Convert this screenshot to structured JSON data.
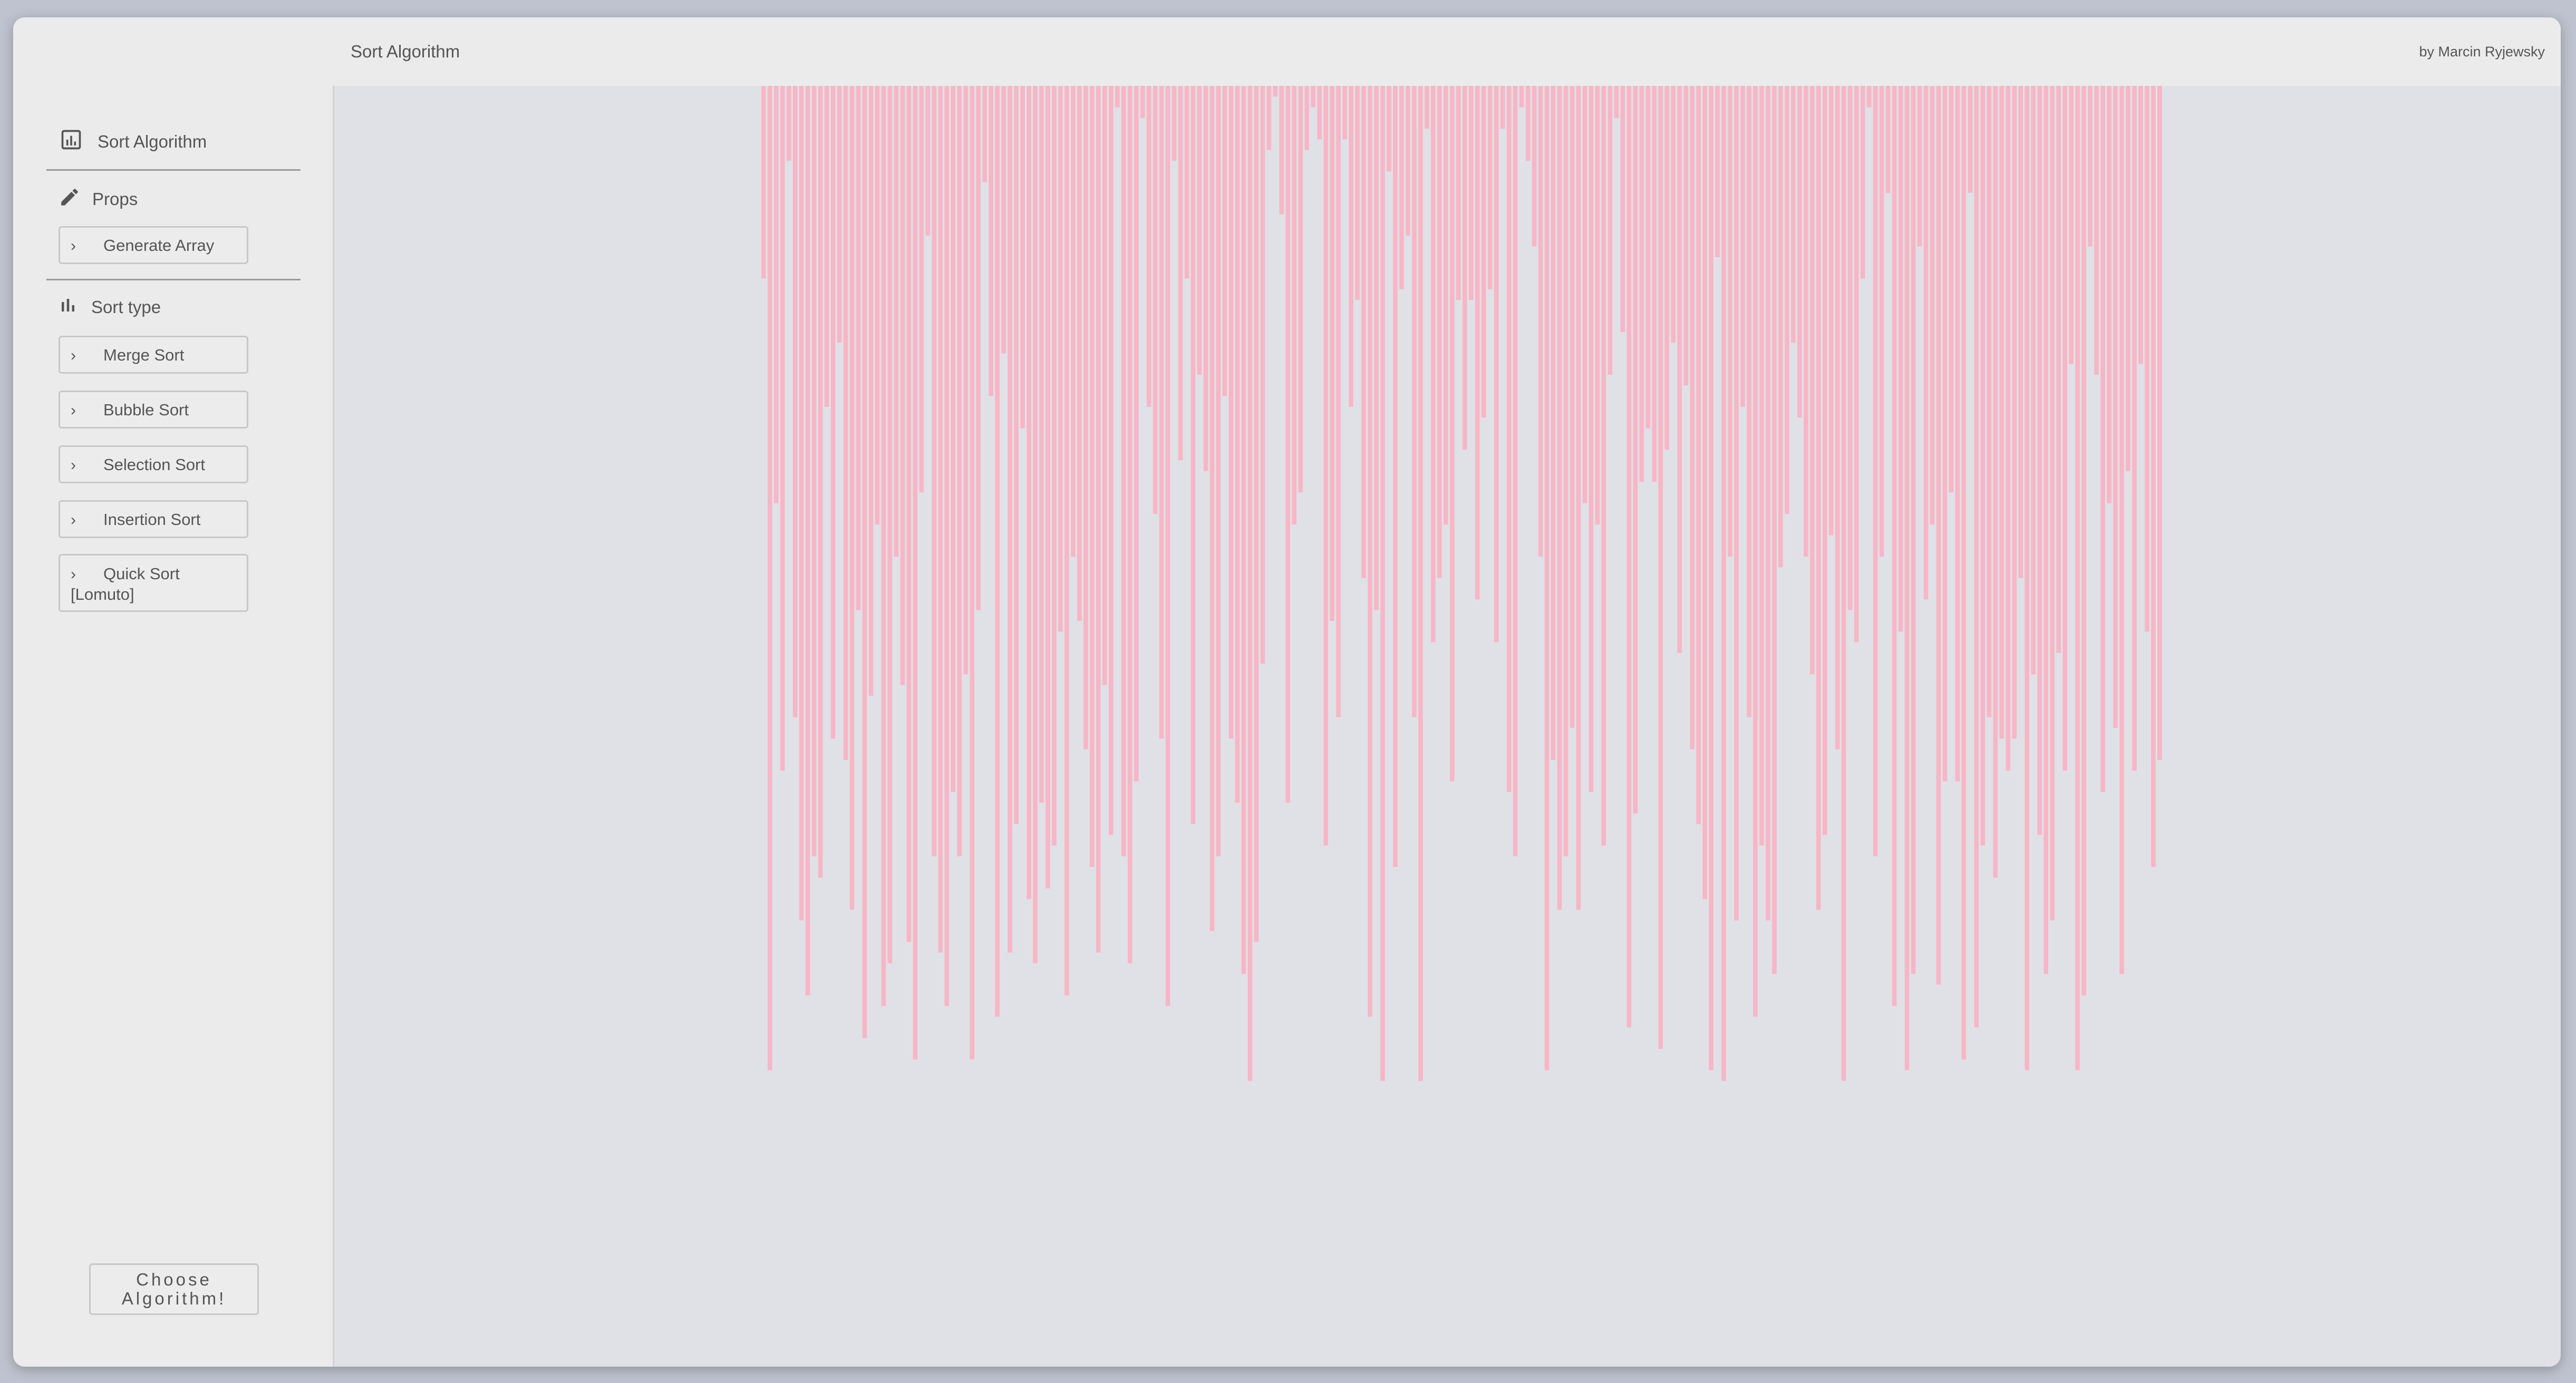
{
  "header": {
    "title": "Sort Algorithm",
    "author": "by Marcin Ryjewsky"
  },
  "sidebar": {
    "brand": {
      "label": "Sort Algorithm",
      "icon": "bar-chart-icon"
    },
    "props": {
      "label": "Props",
      "icon": "pencil-icon",
      "items": [
        {
          "label": "Generate Array"
        }
      ]
    },
    "sort_type": {
      "label": "Sort type",
      "icon": "bar-chart-icon",
      "items": [
        {
          "label": "Merge Sort"
        },
        {
          "label": "Bubble Sort"
        },
        {
          "label": "Selection Sort"
        },
        {
          "label": "Insertion Sort"
        },
        {
          "label": "Quick Sort [Lomuto]"
        }
      ]
    },
    "choose_button": "Choose Algorithm!"
  },
  "chart_data": {
    "type": "bar",
    "bar_color": "#f7b6c6",
    "values": [
      18,
      92,
      39,
      64,
      7,
      59,
      78,
      85,
      72,
      74,
      30,
      61,
      24,
      63,
      77,
      49,
      89,
      57,
      41,
      86,
      82,
      44,
      56,
      80,
      91,
      38,
      14,
      72,
      81,
      86,
      66,
      72,
      55,
      91,
      49,
      9,
      29,
      87,
      25,
      81,
      69,
      32,
      76,
      82,
      67,
      75,
      71,
      51,
      85,
      44,
      50,
      62,
      73,
      81,
      56,
      70,
      2,
      72,
      82,
      65,
      3,
      30,
      40,
      61,
      86,
      7,
      35,
      18,
      69,
      27,
      36,
      79,
      72,
      29,
      61,
      67,
      83,
      93,
      80,
      54,
      6,
      1,
      12,
      67,
      41,
      38,
      6,
      2,
      5,
      71,
      50,
      59,
      5,
      30,
      20,
      46,
      87,
      49,
      93,
      8,
      73,
      19,
      14,
      59,
      93,
      4,
      52,
      46,
      41,
      65,
      20,
      34,
      20,
      48,
      31,
      19,
      52,
      4,
      66,
      72,
      2,
      7,
      15,
      44,
      92,
      63,
      77,
      72,
      60,
      77,
      39,
      66,
      41,
      71,
      27,
      3,
      23,
      88,
      68,
      37,
      32,
      37,
      90,
      34,
      24,
      53,
      28,
      62,
      69,
      76,
      92,
      16,
      93,
      44,
      78,
      30,
      59,
      87,
      71,
      78,
      83,
      45,
      40,
      24,
      31,
      44,
      55,
      77,
      70,
      42,
      62,
      93,
      49,
      52,
      18,
      2,
      72,
      44,
      10,
      86,
      51,
      92,
      83,
      15,
      48,
      41,
      84,
      65,
      38,
      65,
      91,
      10,
      88,
      71,
      59,
      74,
      61,
      64,
      61,
      46,
      92,
      55,
      70,
      83,
      78,
      53,
      64,
      26,
      92,
      85,
      15,
      27,
      66,
      39,
      60,
      83,
      36,
      64,
      26,
      51,
      73,
      63
    ]
  }
}
